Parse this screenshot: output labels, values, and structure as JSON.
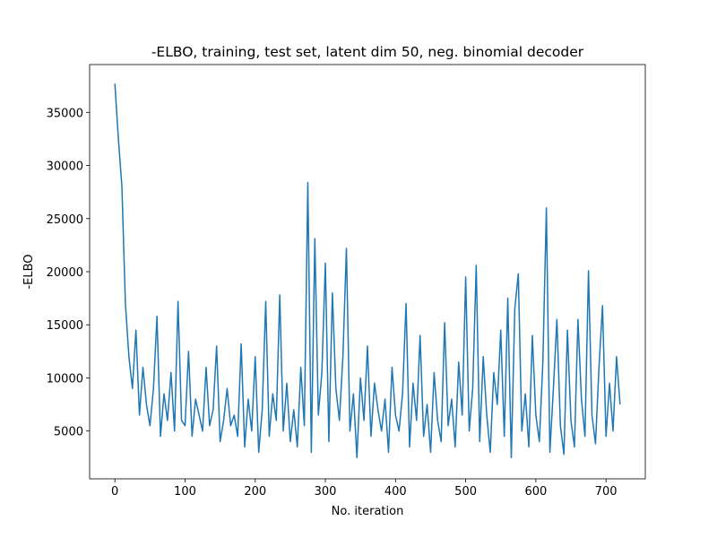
{
  "chart_data": {
    "type": "line",
    "title": "-ELBO, training, test set, latent dim 50, neg. binomial decoder",
    "x_label": "No. iteration",
    "y_label": "-ELBO",
    "x": [
      0,
      5,
      10,
      15,
      20,
      25,
      30,
      35,
      40,
      45,
      50,
      55,
      60,
      65,
      70,
      75,
      80,
      85,
      90,
      95,
      100,
      105,
      110,
      115,
      120,
      125,
      130,
      135,
      140,
      145,
      150,
      155,
      160,
      165,
      170,
      175,
      180,
      185,
      190,
      195,
      200,
      205,
      210,
      215,
      220,
      225,
      230,
      235,
      240,
      245,
      250,
      255,
      260,
      265,
      270,
      275,
      280,
      285,
      290,
      295,
      300,
      305,
      310,
      315,
      320,
      325,
      330,
      335,
      340,
      345,
      350,
      355,
      360,
      365,
      370,
      375,
      380,
      385,
      390,
      395,
      400,
      405,
      410,
      415,
      420,
      425,
      430,
      435,
      440,
      445,
      450,
      455,
      460,
      465,
      470,
      475,
      480,
      485,
      490,
      495,
      500,
      505,
      510,
      515,
      520,
      525,
      530,
      535,
      540,
      545,
      550,
      555,
      560,
      565,
      570,
      575,
      580,
      585,
      590,
      595,
      600,
      605,
      610,
      615,
      620,
      625,
      630,
      635,
      640,
      645,
      650,
      655,
      660,
      665,
      670,
      675,
      680,
      685,
      690,
      695,
      700,
      705,
      710,
      715,
      720
    ],
    "series": [
      {
        "name": "-ELBO",
        "color": "#1f77b4",
        "values": [
          37700,
          32500,
          28000,
          17000,
          12000,
          9000,
          14500,
          6500,
          11000,
          7500,
          5500,
          9000,
          15800,
          4500,
          8500,
          6000,
          10500,
          5000,
          17200,
          6000,
          5500,
          12500,
          4500,
          8000,
          6500,
          5000,
          11000,
          5500,
          7000,
          13000,
          4000,
          6000,
          9000,
          5500,
          6500,
          4500,
          13200,
          3500,
          8000,
          5000,
          12000,
          3000,
          7000,
          17200,
          4500,
          8500,
          6000,
          17800,
          5000,
          9500,
          4000,
          7000,
          3500,
          11000,
          5500,
          28400,
          3000,
          23100,
          6500,
          10500,
          20800,
          4000,
          18000,
          9000,
          6000,
          12000,
          22200,
          5000,
          8500,
          2500,
          10000,
          6000,
          13000,
          4500,
          9500,
          7000,
          5000,
          8000,
          3000,
          11000,
          6500,
          5000,
          8500,
          17000,
          3500,
          9500,
          6000,
          14000,
          4500,
          7500,
          3000,
          10500,
          6000,
          4000,
          15200,
          5500,
          8000,
          3500,
          11500,
          6500,
          19500,
          5000,
          9000,
          20600,
          4000,
          12000,
          6500,
          3000,
          10500,
          7500,
          14500,
          4500,
          17500,
          2500,
          16500,
          19800,
          5000,
          8500,
          3500,
          14000,
          6500,
          4000,
          11500,
          26000,
          3000,
          9000,
          15500,
          5500,
          2800,
          14500,
          6000,
          3500,
          15500,
          8000,
          4500,
          20100,
          6500,
          3800,
          11000,
          16800,
          4500,
          9500,
          5000,
          12000,
          7500
        ]
      }
    ],
    "xlim": [
      -36,
      756
    ],
    "ylim": [
      500,
      39500
    ],
    "xticks": [
      0,
      100,
      200,
      300,
      400,
      500,
      600,
      700
    ],
    "yticks": [
      5000,
      10000,
      15000,
      20000,
      25000,
      30000,
      35000
    ],
    "grid": false
  }
}
